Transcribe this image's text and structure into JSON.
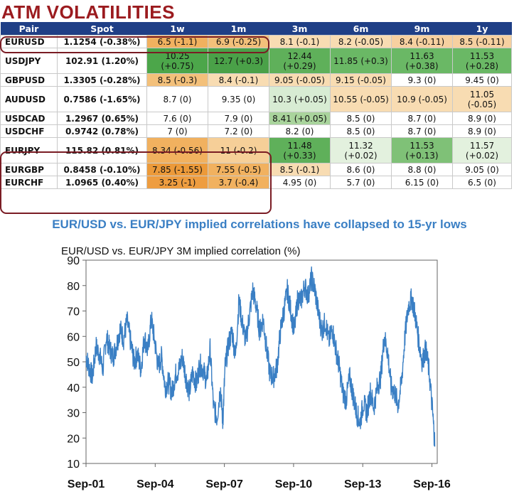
{
  "title": "ATM VOLATILITIES",
  "table": {
    "headers": [
      "Pair",
      "Spot",
      "1w",
      "1m",
      "3m",
      "6m",
      "9m",
      "1y"
    ],
    "rows": [
      {
        "pair": "EURUSD",
        "spot": "1.1254 (-0.38%)",
        "cells": [
          "6.5 (-1.1)",
          "6.9 (-0.25)",
          "8.1 (-0.1)",
          "8.2 (-0.05)",
          "8.4 (-0.11)",
          "8.5 (-0.11)"
        ],
        "colors": [
          "#f1b15f",
          "#f3c07a",
          "#f8dcb2",
          "#f8dcb2",
          "#f6d0a0",
          "#f6d0a0"
        ]
      },
      {
        "pair": "USDJPY",
        "spot": "102.91 (1.20%)",
        "cells": [
          "10.25 (+0.75)",
          "12.7 (+0.3)",
          "12.44 (+0.29)",
          "11.85 (+0.3)",
          "11.63 (+0.38)",
          "11.53 (+0.28)"
        ],
        "colors": [
          "#4ca64a",
          "#4aa148",
          "#5fb05a",
          "#6ab865",
          "#6ab865",
          "#6ab865"
        ]
      },
      {
        "pair": "GBPUSD",
        "spot": "1.3305 (-0.28%)",
        "cells": [
          "8.5 (-0.3)",
          "8.4 (-0.1)",
          "9.05 (-0.05)",
          "9.15 (-0.05)",
          "9.3 (0)",
          "9.45 (0)"
        ],
        "colors": [
          "#f3c07a",
          "#f8dcb2",
          "#f8dcb2",
          "#f8dcb2",
          "#ffffff",
          "#ffffff"
        ]
      },
      {
        "pair": "AUDUSD",
        "spot": "0.7586 (-1.65%)",
        "cells": [
          "8.7 (0)",
          "9.35 (0)",
          "10.3 (+0.05)",
          "10.55 (-0.05)",
          "10.9 (-0.05)",
          "11.05 (-0.05)"
        ],
        "colors": [
          "#ffffff",
          "#ffffff",
          "#d8ecd3",
          "#f8dcb2",
          "#f8dcb2",
          "#f8dcb2"
        ]
      },
      {
        "pair": "USDCAD",
        "spot": "1.2967 (0.65%)",
        "cells": [
          "7.6 (0)",
          "7.9 (0)",
          "8.41 (+0.05)",
          "8.5 (0)",
          "8.7 (0)",
          "8.9 (0)"
        ],
        "colors": [
          "#ffffff",
          "#ffffff",
          "#a9d49c",
          "#ffffff",
          "#ffffff",
          "#ffffff"
        ]
      },
      {
        "pair": "USDCHF",
        "spot": "0.9742 (0.78%)",
        "cells": [
          "7 (0)",
          "7.2 (0)",
          "8.2 (0)",
          "8.5 (0)",
          "8.7 (0)",
          "8.9 (0)"
        ],
        "colors": [
          "#ffffff",
          "#ffffff",
          "#ffffff",
          "#ffffff",
          "#ffffff",
          "#ffffff"
        ]
      },
      {
        "pair": "EURJPY",
        "spot": "115.82 (0.81%)",
        "cells": [
          "8.34 (-0.56)",
          "11 (-0.2)",
          "11.48 (+0.33)",
          "11.32 (+0.02)",
          "11.53 (+0.13)",
          "11.57 (+0.02)"
        ],
        "colors": [
          "#f1b15f",
          "#f6cf98",
          "#5fb05a",
          "#e3f1de",
          "#7fc177",
          "#e3f1de"
        ]
      },
      {
        "pair": "EURGBP",
        "spot": "0.8458 (-0.10%)",
        "cells": [
          "7.85 (-1.55)",
          "7.55 (-0.5)",
          "8.5 (-0.1)",
          "8.6 (0)",
          "8.8 (0)",
          "9.05 (0)"
        ],
        "colors": [
          "#ec9a3a",
          "#f1b15f",
          "#f8dcb2",
          "#ffffff",
          "#ffffff",
          "#ffffff"
        ]
      },
      {
        "pair": "EURCHF",
        "spot": "1.0965 (0.40%)",
        "cells": [
          "3.25 (-1)",
          "3.7 (-0.4)",
          "4.95 (0)",
          "5.7 (0)",
          "6.15 (0)",
          "6.5 (0)"
        ],
        "colors": [
          "#ee9d40",
          "#f1b15f",
          "#ffffff",
          "#ffffff",
          "#ffffff",
          "#ffffff"
        ]
      }
    ]
  },
  "subtitle": "EUR/USD vs. EUR/JPY implied correlations have collapsed to 15-yr lows",
  "chart_data": {
    "type": "line",
    "title": "EUR/USD vs. EUR/JPY 3M implied correlation (%)",
    "xlabel": "",
    "ylabel": "",
    "x_tick_labels": [
      "Sep-01",
      "Sep-04",
      "Sep-07",
      "Sep-10",
      "Sep-13",
      "Sep-16"
    ],
    "y_ticks": [
      10,
      20,
      30,
      40,
      50,
      60,
      70,
      80,
      90
    ],
    "ylim": [
      10,
      90
    ],
    "xlim": [
      2001.67,
      2016.9
    ],
    "grid": false,
    "line_color": "#3a7fc4",
    "series": [
      {
        "x": [
          2001.67,
          2001.8,
          2001.95,
          2002.1,
          2002.25,
          2002.4,
          2002.55,
          2002.7,
          2002.85,
          2003.0,
          2003.15,
          2003.3,
          2003.45,
          2003.6,
          2003.75,
          2003.9,
          2004.05,
          2004.2,
          2004.35,
          2004.5,
          2004.65,
          2004.8,
          2004.95,
          2005.1,
          2005.25,
          2005.4,
          2005.55,
          2005.7,
          2005.85,
          2006.0,
          2006.15,
          2006.3,
          2006.45,
          2006.6,
          2006.75,
          2006.9,
          2007.05,
          2007.2,
          2007.35,
          2007.5,
          2007.6,
          2007.7,
          2007.85,
          2008.0,
          2008.15,
          2008.3,
          2008.45,
          2008.6,
          2008.75,
          2008.9,
          2009.05,
          2009.2,
          2009.35,
          2009.5,
          2009.65,
          2009.8,
          2009.95,
          2010.1,
          2010.25,
          2010.4,
          2010.55,
          2010.7,
          2010.85,
          2011.0,
          2011.15,
          2011.3,
          2011.45,
          2011.6,
          2011.75,
          2011.9,
          2012.05,
          2012.2,
          2012.35,
          2012.5,
          2012.65,
          2012.8,
          2012.95,
          2013.1,
          2013.25,
          2013.4,
          2013.55,
          2013.7,
          2013.85,
          2014.0,
          2014.15,
          2014.3,
          2014.45,
          2014.6,
          2014.75,
          2014.9,
          2015.05,
          2015.2,
          2015.35,
          2015.5,
          2015.65,
          2015.8,
          2015.95,
          2016.1,
          2016.25,
          2016.4,
          2016.55,
          2016.7,
          2016.8
        ],
        "y": [
          52,
          48,
          44,
          56,
          53,
          47,
          60,
          55,
          52,
          57,
          63,
          59,
          66,
          58,
          50,
          53,
          47,
          60,
          54,
          67,
          58,
          48,
          52,
          40,
          42,
          38,
          45,
          47,
          52,
          44,
          38,
          46,
          41,
          49,
          47,
          42,
          55,
          32,
          28,
          40,
          26,
          48,
          57,
          62,
          52,
          74,
          65,
          58,
          68,
          78,
          72,
          62,
          67,
          55,
          45,
          44,
          48,
          62,
          70,
          78,
          70,
          62,
          75,
          74,
          80,
          76,
          83,
          78,
          69,
          62,
          66,
          58,
          63,
          55,
          48,
          38,
          35,
          44,
          37,
          30,
          26,
          34,
          30,
          38,
          32,
          40,
          44,
          60,
          54,
          40,
          38,
          33,
          42,
          60,
          72,
          75,
          68,
          58,
          50,
          55,
          46,
          30,
          17
        ]
      }
    ]
  }
}
